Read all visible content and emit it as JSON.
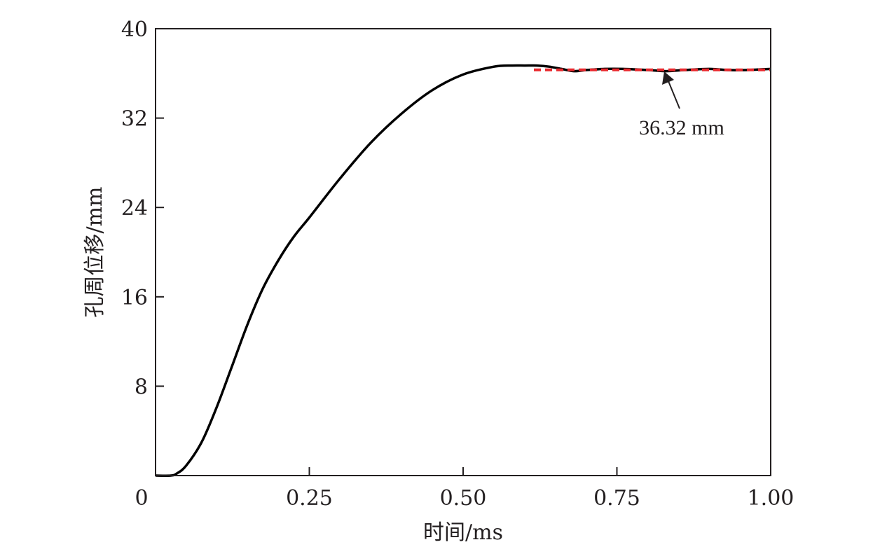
{
  "chart_data": {
    "type": "line",
    "xlabel": "时间/ms",
    "ylabel": "孔周位移/mm",
    "xlim": [
      0,
      1.0
    ],
    "ylim": [
      0,
      40
    ],
    "x_ticks": [
      "0",
      "0.25",
      "0.50",
      "0.75",
      "1.00"
    ],
    "y_ticks": [
      "8",
      "16",
      "24",
      "32",
      "40"
    ],
    "x_tick_values": [
      0,
      0.25,
      0.5,
      0.75,
      1.0
    ],
    "y_tick_values": [
      8,
      16,
      24,
      32,
      40
    ],
    "series": [
      {
        "color": "#000000",
        "style": "solid",
        "x": [
          0,
          0.025,
          0.035,
          0.05,
          0.075,
          0.1,
          0.125,
          0.15,
          0.175,
          0.2,
          0.225,
          0.25,
          0.3,
          0.35,
          0.4,
          0.45,
          0.5,
          0.55,
          0.58,
          0.6,
          0.62,
          0.64,
          0.66,
          0.68,
          0.7,
          0.73,
          0.76,
          0.8,
          0.83,
          0.86,
          0.9,
          0.93,
          0.96,
          1.0
        ],
        "y": [
          0,
          0.0,
          0.2,
          0.9,
          3.0,
          6.2,
          9.9,
          13.6,
          16.8,
          19.3,
          21.4,
          23.1,
          26.6,
          29.8,
          32.4,
          34.5,
          35.9,
          36.6,
          36.7,
          36.7,
          36.7,
          36.6,
          36.4,
          36.2,
          36.3,
          36.4,
          36.4,
          36.3,
          36.2,
          36.3,
          36.4,
          36.3,
          36.3,
          36.4
        ]
      },
      {
        "color": "#e8292e",
        "style": "dashed",
        "x": [
          0.615,
          1.0
        ],
        "y": [
          36.32,
          36.32
        ]
      }
    ],
    "annotations": [
      {
        "text": "36.32 mm",
        "x": 0.83,
        "y": 36.32
      }
    ]
  }
}
